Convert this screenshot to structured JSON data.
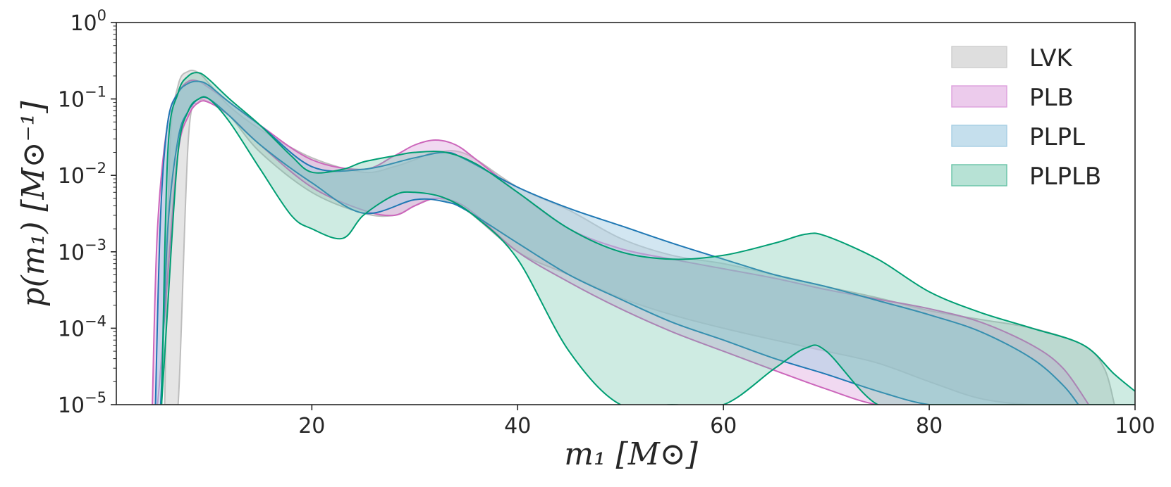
{
  "chart_data": {
    "type": "area",
    "xlabel": "m₁ [M⊙]",
    "ylabel": "p(m₁) [M⊙⁻¹]",
    "xlim": [
      1,
      100
    ],
    "ylim": [
      1e-05,
      1
    ],
    "yscale": "log",
    "x_ticks": [
      20,
      40,
      60,
      80,
      100
    ],
    "x_tick_labels": [
      "20",
      "40",
      "60",
      "80",
      "100"
    ],
    "y_ticks": [
      1e-05,
      0.0001,
      0.001,
      0.01,
      0.1,
      1
    ],
    "y_tick_labels": [
      {
        "base": "10",
        "exp": "−5"
      },
      {
        "base": "10",
        "exp": "−4"
      },
      {
        "base": "10",
        "exp": "−3"
      },
      {
        "base": "10",
        "exp": "−2"
      },
      {
        "base": "10",
        "exp": "−1"
      },
      {
        "base": "10",
        "exp": "0"
      }
    ],
    "legend_position": "top-right",
    "series": [
      {
        "name": "LVK",
        "fill": "#cccccc",
        "stroke": "#bdbdbd",
        "fill_opacity": 0.5,
        "x": [
          5.7,
          6.2,
          7,
          8,
          9,
          10,
          12,
          15,
          20,
          25,
          28,
          30,
          32,
          35,
          40,
          45,
          50,
          55,
          60,
          65,
          70,
          75,
          80,
          85,
          90,
          95,
          97,
          98
        ],
        "upper": [
          1e-05,
          0.02,
          0.15,
          0.23,
          0.22,
          0.16,
          0.08,
          0.04,
          0.017,
          0.011,
          0.013,
          0.016,
          0.02,
          0.019,
          0.007,
          0.0035,
          0.0015,
          0.0009,
          0.0007,
          0.0005,
          0.00035,
          0.00025,
          0.00017,
          0.00013,
          0.0001,
          6e-05,
          3e-05,
          1e-05
        ],
        "lower": [
          1e-05,
          1e-05,
          1e-05,
          0.03,
          0.09,
          0.09,
          0.06,
          0.02,
          0.006,
          0.0032,
          0.003,
          0.004,
          0.005,
          0.0035,
          0.001,
          0.0005,
          0.00025,
          0.00015,
          0.0001,
          7e-05,
          5e-05,
          3.5e-05,
          2e-05,
          1.2e-05,
          1e-05,
          1e-05,
          1e-05,
          1e-05
        ]
      },
      {
        "name": "PLB",
        "fill": "#dda0dd",
        "stroke": "#cc66bb",
        "fill_opacity": 0.4,
        "x": [
          4.5,
          5,
          6,
          7,
          8,
          9,
          10,
          12,
          15,
          20,
          25,
          28,
          30,
          32,
          34,
          36,
          40,
          45,
          50,
          55,
          60,
          65,
          70,
          75,
          80,
          85,
          90,
          93,
          95.5
        ],
        "upper": [
          1e-05,
          0.002,
          0.05,
          0.12,
          0.17,
          0.17,
          0.14,
          0.09,
          0.045,
          0.016,
          0.012,
          0.018,
          0.025,
          0.029,
          0.025,
          0.016,
          0.006,
          0.002,
          0.0011,
          0.0008,
          0.0006,
          0.00045,
          0.00032,
          0.00024,
          0.00018,
          0.00012,
          6e-05,
          3e-05,
          1e-05
        ],
        "lower": [
          1e-05,
          1e-05,
          0.0005,
          0.02,
          0.06,
          0.09,
          0.09,
          0.06,
          0.025,
          0.007,
          0.0035,
          0.003,
          0.004,
          0.005,
          0.0045,
          0.003,
          0.001,
          0.0004,
          0.00018,
          9e-05,
          5e-05,
          2.8e-05,
          1.6e-05,
          1e-05,
          1e-05,
          1e-05,
          1e-05,
          1e-05,
          1e-05
        ],
        "lower_end": 76
      },
      {
        "name": "PLPL",
        "fill": "#a6cee3",
        "stroke": "#1f78b4",
        "fill_opacity": 0.5,
        "x": [
          4.8,
          5.3,
          6,
          7,
          8,
          9,
          10,
          12,
          15,
          20,
          25,
          30,
          33,
          35,
          40,
          45,
          50,
          55,
          60,
          65,
          70,
          75,
          80,
          85,
          90,
          93,
          94.5
        ],
        "upper": [
          1e-05,
          0.003,
          0.05,
          0.12,
          0.16,
          0.17,
          0.15,
          0.09,
          0.045,
          0.013,
          0.012,
          0.017,
          0.02,
          0.016,
          0.007,
          0.0037,
          0.0022,
          0.0013,
          0.0008,
          0.0005,
          0.00035,
          0.00023,
          0.00015,
          9e-05,
          4e-05,
          1.8e-05,
          1e-05
        ],
        "lower": [
          1e-05,
          1e-05,
          0.002,
          0.03,
          0.07,
          0.1,
          0.1,
          0.06,
          0.025,
          0.008,
          0.0032,
          0.0048,
          0.0045,
          0.0035,
          0.0013,
          0.0005,
          0.00024,
          0.00012,
          7e-05,
          4e-05,
          2.5e-05,
          1.5e-05,
          1e-05,
          1e-05,
          1e-05,
          1e-05,
          1e-05
        ],
        "lower_end": 75
      },
      {
        "name": "PLPLB",
        "fill": "#66c2a5",
        "stroke": "#009e73",
        "fill_opacity": 0.32,
        "x": [
          5.4,
          6,
          7,
          8,
          9,
          10,
          12,
          15,
          18,
          20,
          23,
          25,
          28,
          30,
          33,
          36,
          40,
          45,
          50,
          55,
          60,
          65,
          68,
          70,
          75,
          80,
          85,
          90,
          95,
          98,
          100
        ],
        "upper": [
          1e-05,
          0.02,
          0.12,
          0.2,
          0.22,
          0.18,
          0.1,
          0.045,
          0.018,
          0.011,
          0.012,
          0.015,
          0.018,
          0.02,
          0.02,
          0.014,
          0.006,
          0.002,
          0.001,
          0.0008,
          0.0009,
          0.0013,
          0.0017,
          0.0016,
          0.0008,
          0.0003,
          0.00016,
          0.0001,
          6e-05,
          2.5e-05,
          1.5e-05
        ],
        "lower": [
          1e-05,
          0.0002,
          0.02,
          0.07,
          0.1,
          0.1,
          0.05,
          0.012,
          0.003,
          0.002,
          0.0015,
          0.003,
          0.0055,
          0.006,
          0.005,
          0.0028,
          0.0008,
          5e-05,
          1e-05,
          1e-05,
          1e-05,
          3e-05,
          5.5e-05,
          5e-05,
          1e-05,
          1e-05,
          1e-05,
          1e-05,
          1e-05,
          1e-05,
          1e-05
        ],
        "lower_gap": [
          47,
          62.5
        ],
        "lower_end": 73
      }
    ]
  }
}
